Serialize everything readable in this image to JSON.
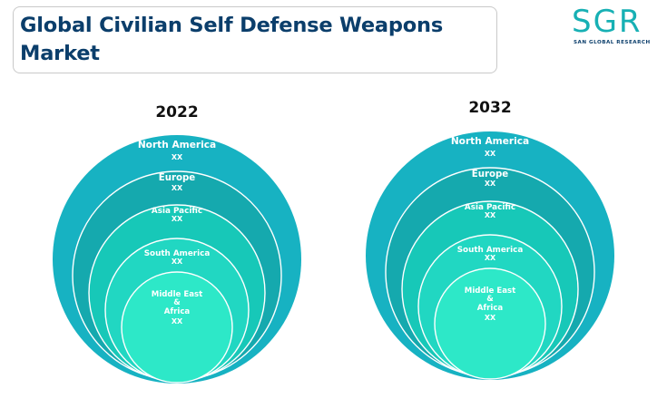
{
  "title": "Global Civilian Self Defense Weapons Market",
  "logo": {
    "letters": "SGR",
    "tagline": "SAN GLOBAL RESEARCH"
  },
  "panels": [
    {
      "year": "2022",
      "rings": [
        {
          "label": "North America",
          "value": "XX",
          "color": "#17b2c2"
        },
        {
          "label": "Europe",
          "value": "XX",
          "color": "#15a9ae"
        },
        {
          "label": "Asia Pacific",
          "value": "XX",
          "color": "#17c8b8"
        },
        {
          "label": "South America",
          "value": "XX",
          "color": "#21d7c2"
        },
        {
          "label": "Middle East & Africa",
          "value": "XX",
          "color": "#2de8c8"
        }
      ]
    },
    {
      "year": "2032",
      "rings": [
        {
          "label": "North America",
          "value": "XX",
          "color": "#17b2c2"
        },
        {
          "label": "Europe",
          "value": "XX",
          "color": "#15a9ae"
        },
        {
          "label": "Asia Pacific",
          "value": "XX",
          "color": "#17c8b8"
        },
        {
          "label": "South America",
          "value": "XX",
          "color": "#21d7c2"
        },
        {
          "label": "Middle East & Africa",
          "value": "XX",
          "color": "#2de8c8"
        }
      ]
    }
  ]
}
